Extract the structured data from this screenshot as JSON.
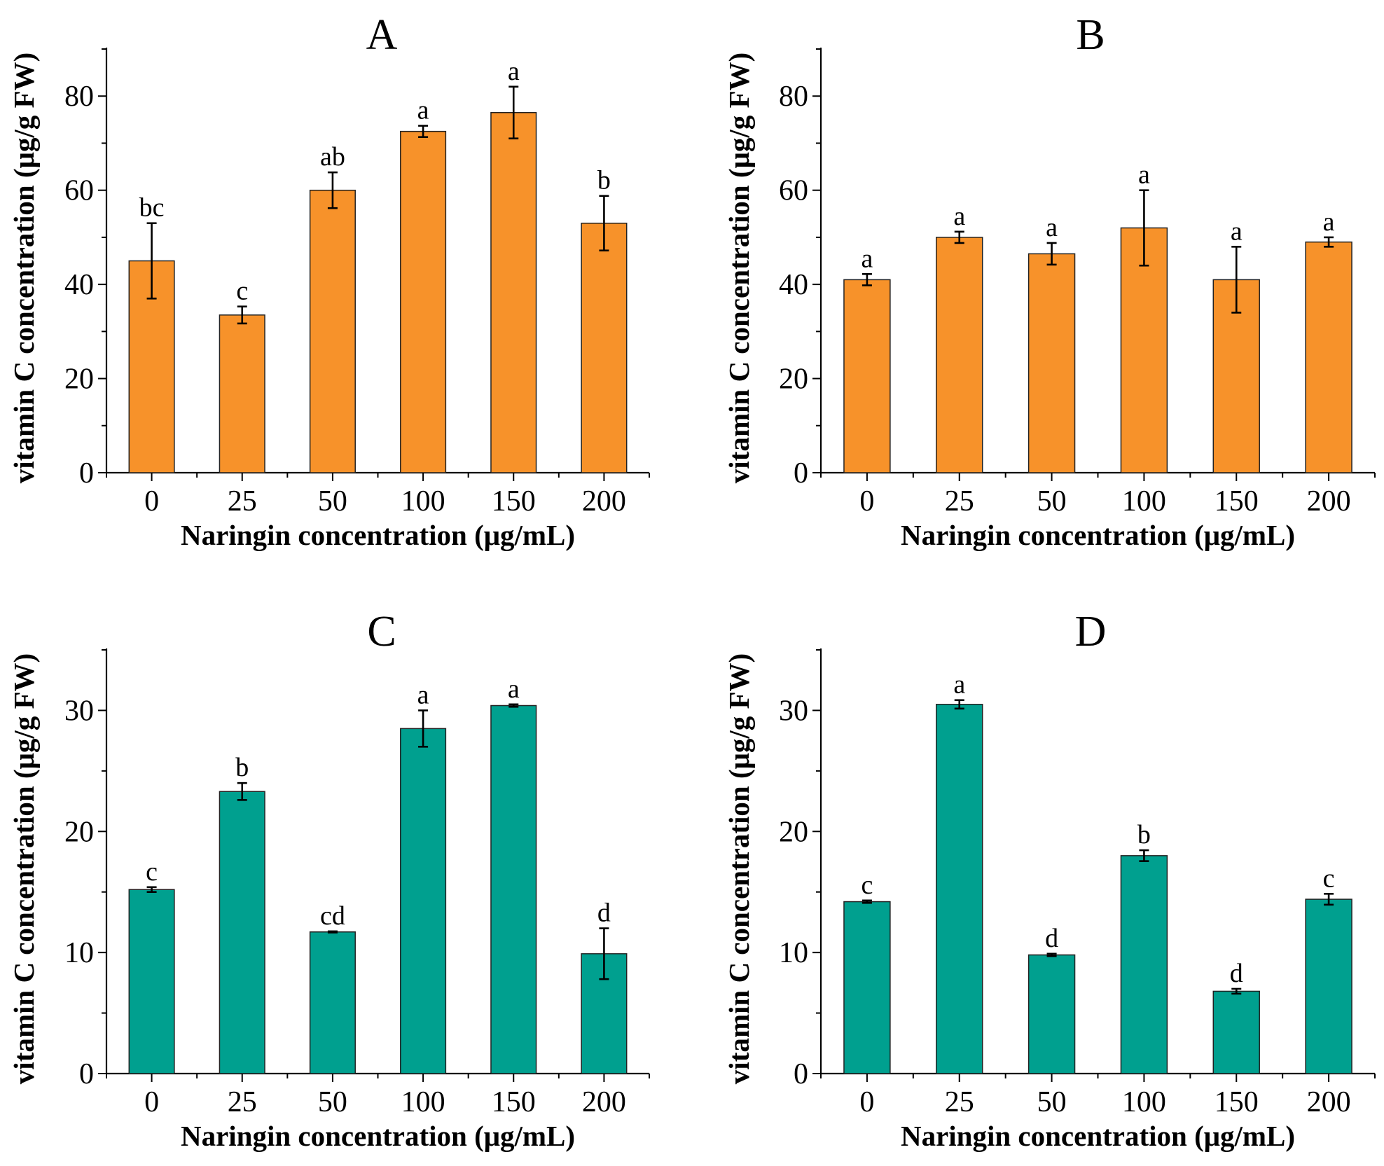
{
  "figure": {
    "shared_xlabel": "Naringin concentration (μg/mL)",
    "shared_ylabel": "vitamin C concentration (μg/g FW)",
    "colors": {
      "orange": "#F7922A",
      "teal": "#00A08F"
    }
  },
  "chart_data": [
    {
      "type": "bar",
      "title": "A",
      "xlabel": "Naringin concentration (μg/mL)",
      "ylabel": "vitamin C concentration (μg/g FW)",
      "categories": [
        "0",
        "25",
        "50",
        "100",
        "150",
        "200"
      ],
      "values": [
        45,
        33.5,
        60,
        72.5,
        76.5,
        53
      ],
      "errors": [
        8,
        1.8,
        3.8,
        1.2,
        5.5,
        5.8
      ],
      "significance": [
        "bc",
        "c",
        "ab",
        "a",
        "a",
        "b"
      ],
      "ylim": [
        0,
        90
      ],
      "yticks": [
        0,
        20,
        40,
        60,
        80
      ],
      "yticks_minor": [
        10,
        30,
        50,
        70,
        90
      ],
      "color": "#F7922A"
    },
    {
      "type": "bar",
      "title": "B",
      "xlabel": "Naringin concentration (μg/mL)",
      "ylabel": "vitamin C concentration (μg/g FW)",
      "categories": [
        "0",
        "25",
        "50",
        "100",
        "150",
        "200"
      ],
      "values": [
        41,
        50,
        46.5,
        52,
        41,
        49
      ],
      "errors": [
        1.2,
        1.2,
        2.3,
        8,
        7,
        1
      ],
      "significance": [
        "a",
        "a",
        "a",
        "a",
        "a",
        "a"
      ],
      "ylim": [
        0,
        90
      ],
      "yticks": [
        0,
        20,
        40,
        60,
        80
      ],
      "yticks_minor": [
        10,
        30,
        50,
        70,
        90
      ],
      "color": "#F7922A"
    },
    {
      "type": "bar",
      "title": "C",
      "xlabel": "Naringin concentration (μg/mL)",
      "ylabel": "vitamin C concentration (μg/g FW)",
      "categories": [
        "0",
        "25",
        "50",
        "100",
        "150",
        "200"
      ],
      "values": [
        15.2,
        23.3,
        11.7,
        28.5,
        30.4,
        9.9
      ],
      "errors": [
        0.2,
        0.7,
        0.05,
        1.5,
        0.1,
        2.1
      ],
      "significance": [
        "c",
        "b",
        "cd",
        "a",
        "a",
        "d"
      ],
      "ylim": [
        0,
        35
      ],
      "yticks": [
        0,
        10,
        20,
        30
      ],
      "yticks_minor": [
        5,
        15,
        25,
        35
      ],
      "color": "#00A08F"
    },
    {
      "type": "bar",
      "title": "D",
      "xlabel": "Naringin concentration (μg/mL)",
      "ylabel": "vitamin C concentration (μg/g FW)",
      "categories": [
        "0",
        "25",
        "50",
        "100",
        "150",
        "200"
      ],
      "values": [
        14.2,
        30.5,
        9.8,
        18.0,
        6.8,
        14.4
      ],
      "errors": [
        0.1,
        0.35,
        0.1,
        0.45,
        0.2,
        0.45
      ],
      "significance": [
        "c",
        "a",
        "d",
        "b",
        "d",
        "c"
      ],
      "ylim": [
        0,
        35
      ],
      "yticks": [
        0,
        10,
        20,
        30
      ],
      "yticks_minor": [
        5,
        15,
        25,
        35
      ],
      "color": "#00A08F"
    }
  ]
}
